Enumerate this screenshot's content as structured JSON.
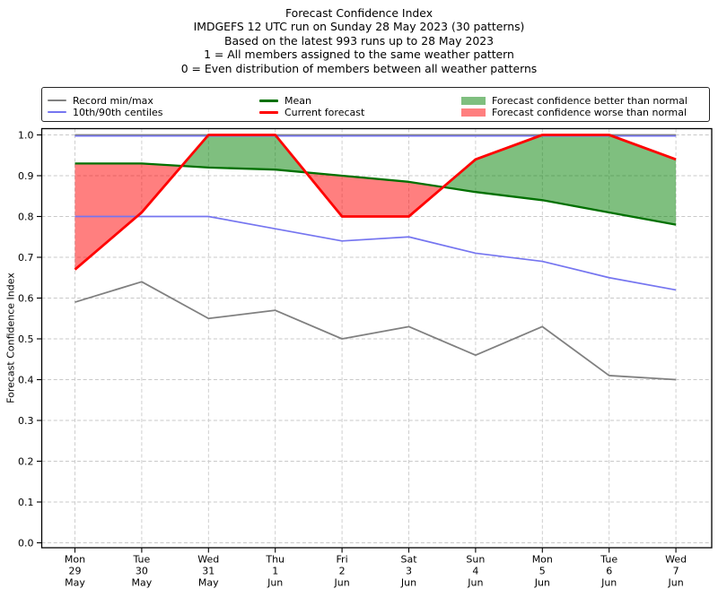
{
  "figure": {
    "background": "#ffffff"
  },
  "chart_data": {
    "type": "line",
    "title": "Forecast Confidence Index",
    "subtitle_lines": [
      "IMDGEFS 12 UTC run on Sunday 28 May 2023 (30 patterns)",
      "Based on the latest 993 runs up to 28 May 2023",
      "1 = All members assigned to the same weather pattern",
      "0 = Even distribution of members between all weather patterns"
    ],
    "ylabel": "Forecast Confidence Index",
    "xlabel": "",
    "ylim": [
      0.0,
      1.0
    ],
    "grid": true,
    "legend_position": "top",
    "y_tick_labels": [
      "0.0",
      "0.1",
      "0.2",
      "0.3",
      "0.4",
      "0.5",
      "0.6",
      "0.7",
      "0.8",
      "0.9",
      "1.0"
    ],
    "x_tick_labels": [
      [
        "Mon",
        "29",
        "May"
      ],
      [
        "Tue",
        "30",
        "May"
      ],
      [
        "Wed",
        "31",
        "May"
      ],
      [
        "Thu",
        "1",
        "Jun"
      ],
      [
        "Fri",
        "2",
        "Jun"
      ],
      [
        "Sat",
        "3",
        "Jun"
      ],
      [
        "Sun",
        "4",
        "Jun"
      ],
      [
        "Mon",
        "5",
        "Jun"
      ],
      [
        "Tue",
        "6",
        "Jun"
      ],
      [
        "Wed",
        "7",
        "Jun"
      ]
    ],
    "series": [
      {
        "id": "record_max",
        "name": "Record max",
        "color": "#808080",
        "values": [
          1.0,
          1.0,
          1.0,
          1.0,
          1.0,
          1.0,
          1.0,
          1.0,
          1.0,
          1.0
        ]
      },
      {
        "id": "record_min",
        "name": "Record min",
        "color": "#808080",
        "values": [
          0.59,
          0.64,
          0.55,
          0.57,
          0.5,
          0.53,
          0.46,
          0.53,
          0.41,
          0.4
        ]
      },
      {
        "id": "p90",
        "name": "90th centile",
        "color": "#7575f0",
        "values": [
          1.0,
          1.0,
          1.0,
          1.0,
          1.0,
          1.0,
          1.0,
          1.0,
          1.0,
          1.0
        ]
      },
      {
        "id": "p10",
        "name": "10th centile",
        "color": "#7575f0",
        "values": [
          0.8,
          0.8,
          0.8,
          0.77,
          0.74,
          0.75,
          0.71,
          0.69,
          0.65,
          0.62
        ]
      },
      {
        "id": "mean",
        "name": "Mean",
        "color": "#007000",
        "values": [
          0.93,
          0.93,
          0.92,
          0.915,
          0.9,
          0.885,
          0.86,
          0.84,
          0.81,
          0.78
        ]
      },
      {
        "id": "current",
        "name": "Current forecast",
        "color": "#ff0000",
        "values": [
          0.67,
          0.81,
          1.0,
          1.0,
          0.8,
          0.8,
          0.94,
          1.0,
          1.0,
          0.94
        ]
      }
    ],
    "shading": {
      "rule": "area between Current forecast and Mean: green where current above mean, red where current below mean",
      "better_than_normal_color": "#008000",
      "worse_than_normal_color": "#ff0000",
      "opacity": 0.5
    }
  },
  "legend": {
    "items": [
      {
        "label": "Record min/max",
        "swatch": "line",
        "color": "#808080"
      },
      {
        "label": "10th/90th centiles",
        "swatch": "line",
        "color": "#7575f0"
      },
      {
        "label": "Mean",
        "swatch": "line",
        "color": "#007000"
      },
      {
        "label": "Current forecast",
        "swatch": "line",
        "color": "#ff0000"
      },
      {
        "label": "Forecast confidence better than normal",
        "swatch": "patch",
        "color": "#7fbf7f"
      },
      {
        "label": "Forecast confidence worse than normal",
        "swatch": "patch",
        "color": "#ff7f7f"
      }
    ]
  }
}
